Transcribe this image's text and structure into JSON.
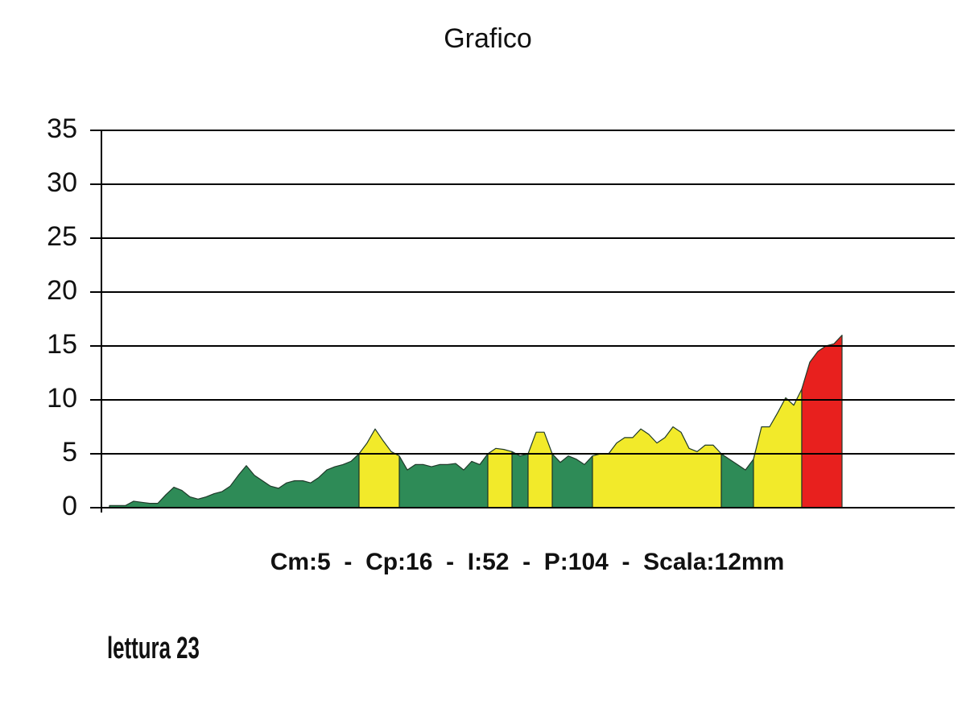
{
  "chart_data": {
    "type": "area",
    "title": "Grafico",
    "caption": "Cm:5  -  Cp:16  -  I:52  -  P:104  -  Scala:12mm",
    "note": "lettura 23",
    "x": [
      1,
      2,
      3,
      4,
      5,
      6,
      7,
      8,
      9,
      10,
      11,
      12,
      13,
      14,
      15,
      16,
      17,
      18,
      19,
      20,
      21,
      22,
      23,
      24,
      25,
      26,
      27,
      28,
      29,
      30,
      31,
      32,
      33,
      34,
      35,
      36,
      37,
      38,
      39,
      40,
      41,
      42,
      43,
      44,
      45,
      46,
      47,
      48,
      49,
      50,
      51,
      52,
      53,
      54,
      55,
      56,
      57,
      58,
      59,
      60,
      61,
      62,
      63,
      64,
      65,
      66,
      67,
      68,
      69,
      70,
      71,
      72,
      73,
      74,
      75,
      76,
      77,
      78,
      79,
      80,
      81,
      82,
      83,
      84,
      85,
      86,
      87,
      88,
      89,
      90,
      91,
      92
    ],
    "xlim": [
      0,
      106
    ],
    "ylim": [
      0,
      35
    ],
    "yticks": [
      0,
      5,
      10,
      15,
      20,
      25,
      30,
      35
    ],
    "grid": true,
    "series": [
      {
        "color": "#2e8b57",
        "values": [
          0.2,
          0.2,
          0.2,
          0.6,
          0.5,
          0.4,
          0.4,
          1.2,
          1.9,
          1.6,
          1.0,
          0.8,
          1.0,
          1.3,
          1.5,
          2.0,
          3.0,
          3.9,
          3.0,
          2.5,
          2.0,
          1.8,
          2.3,
          2.5,
          2.5,
          2.3,
          2.8,
          3.5,
          3.8,
          4.0,
          4.3,
          5.0,
          null,
          null,
          null,
          null,
          4.8,
          3.5,
          4.0,
          4.0,
          3.8,
          4.0,
          4.0,
          4.1,
          3.5,
          4.3,
          4.0,
          5.0,
          null,
          null,
          5.2,
          4.8,
          5.0,
          null,
          null,
          5.0,
          4.2,
          4.8,
          4.5,
          4.0,
          4.8,
          null,
          null,
          null,
          null,
          null,
          null,
          null,
          null,
          null,
          null,
          null,
          null,
          null,
          null,
          null,
          5.0,
          4.5,
          4.0,
          3.5,
          4.5,
          null,
          null,
          null,
          null,
          null,
          null,
          null,
          null,
          null,
          null,
          null
        ]
      },
      {
        "color": "#f2ea2a",
        "values": [
          null,
          null,
          null,
          null,
          null,
          null,
          null,
          null,
          null,
          null,
          null,
          null,
          null,
          null,
          null,
          null,
          null,
          null,
          null,
          null,
          null,
          null,
          null,
          null,
          null,
          null,
          null,
          null,
          null,
          null,
          null,
          5.0,
          6.0,
          7.3,
          6.2,
          5.2,
          4.8,
          null,
          null,
          null,
          null,
          null,
          null,
          null,
          null,
          null,
          null,
          5.0,
          5.5,
          5.4,
          5.2,
          null,
          5.0,
          7.0,
          7.0,
          5.0,
          null,
          null,
          null,
          null,
          4.8,
          5.0,
          5.0,
          6.0,
          6.5,
          6.5,
          7.3,
          6.8,
          6.0,
          6.5,
          7.5,
          7.0,
          5.5,
          5.2,
          5.8,
          5.8,
          5.0,
          null,
          null,
          null,
          4.5,
          7.5,
          7.5,
          8.8,
          10.2,
          9.5,
          11.0,
          null,
          null,
          null,
          null,
          null
        ]
      },
      {
        "color": "#e8201e",
        "values": [
          null,
          null,
          null,
          null,
          null,
          null,
          null,
          null,
          null,
          null,
          null,
          null,
          null,
          null,
          null,
          null,
          null,
          null,
          null,
          null,
          null,
          null,
          null,
          null,
          null,
          null,
          null,
          null,
          null,
          null,
          null,
          null,
          null,
          null,
          null,
          null,
          null,
          null,
          null,
          null,
          null,
          null,
          null,
          null,
          null,
          null,
          null,
          null,
          null,
          null,
          null,
          null,
          null,
          null,
          null,
          null,
          null,
          null,
          null,
          null,
          null,
          null,
          null,
          null,
          null,
          null,
          null,
          null,
          null,
          null,
          null,
          null,
          null,
          null,
          null,
          null,
          null,
          null,
          null,
          null,
          null,
          null,
          null,
          null,
          null,
          null,
          11.0,
          13.5,
          14.5,
          15.0,
          15.2,
          16.0
        ]
      }
    ]
  }
}
